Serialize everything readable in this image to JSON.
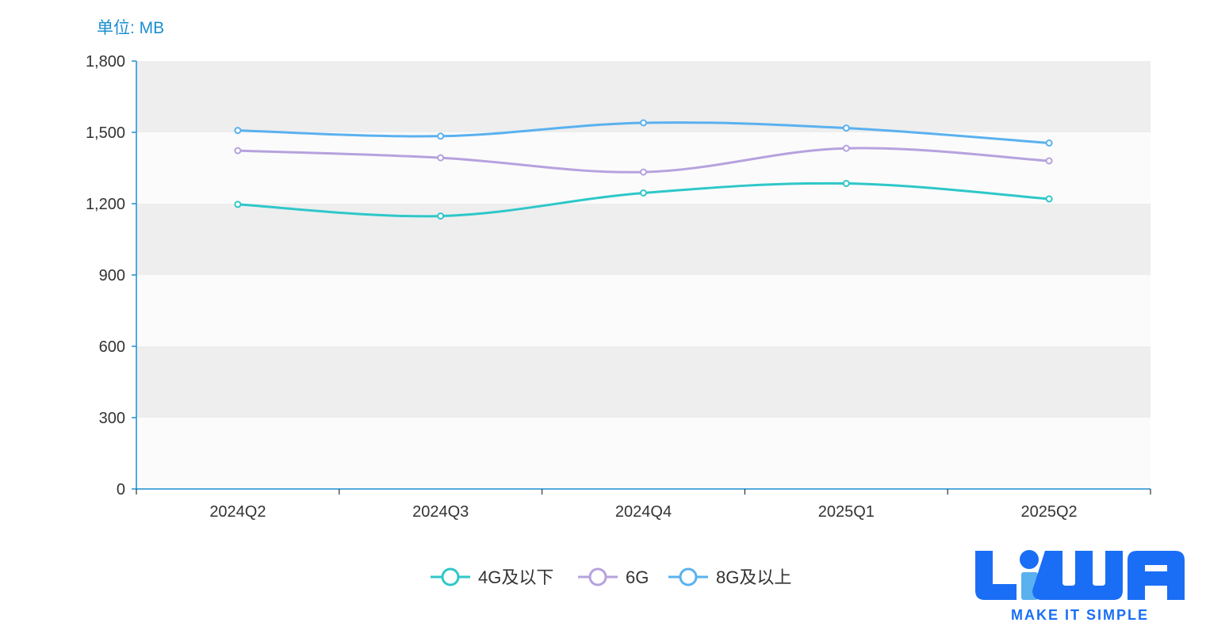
{
  "chart_data": {
    "type": "line",
    "ylabel": "单位: MB",
    "categories": [
      "2024Q2",
      "2024Q3",
      "2024Q4",
      "2025Q1",
      "2025Q2"
    ],
    "ylim": [
      0,
      1800
    ],
    "yticks": [
      0,
      300,
      600,
      900,
      1200,
      1500,
      1800
    ],
    "ytick_labels": [
      "0",
      "300",
      "600",
      "900",
      "1,200",
      "1,500",
      "1,800"
    ],
    "grid": "alternating horizontal bands",
    "legend_position": "bottom-center",
    "series": [
      {
        "name": "4G及以下",
        "color": "#2ec7c9",
        "values": [
          1197,
          1148,
          1245,
          1285,
          1220
        ]
      },
      {
        "name": "6G",
        "color": "#b6a2de",
        "values": [
          1423,
          1393,
          1333,
          1433,
          1380
        ]
      },
      {
        "name": "8G及以上",
        "color": "#5ab1ef",
        "values": [
          1508,
          1484,
          1540,
          1518,
          1455
        ]
      }
    ]
  },
  "logo": {
    "text": "LiWA",
    "tagline": "MAKE IT SIMPLE",
    "color": "#1a6ef5"
  }
}
